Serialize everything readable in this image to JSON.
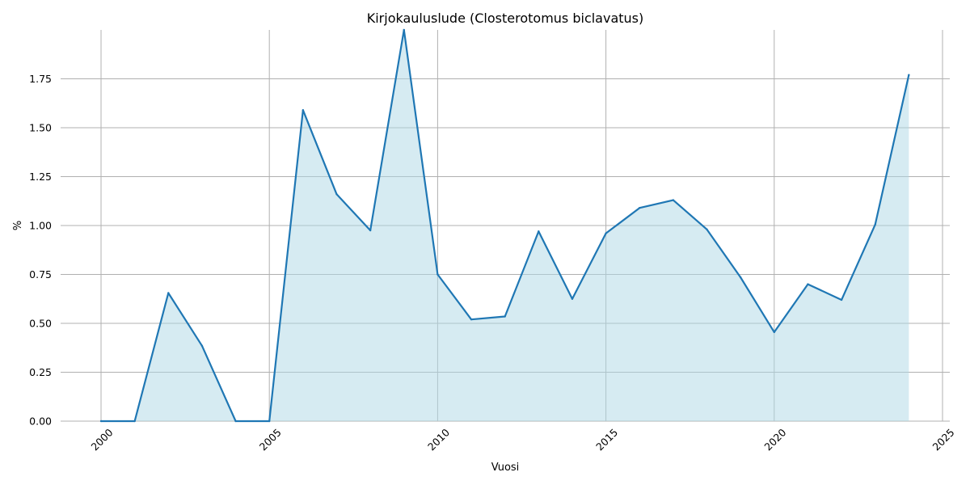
{
  "chart_data": {
    "type": "area",
    "title": "Kirjokauluslude (Closterotomus biclavatus)",
    "xlabel": "Vuosi",
    "ylabel": "%",
    "x": [
      2000,
      2001,
      2002,
      2003,
      2004,
      2005,
      2006,
      2007,
      2008,
      2009,
      2010,
      2011,
      2012,
      2013,
      2014,
      2015,
      2016,
      2017,
      2018,
      2019,
      2020,
      2021,
      2022,
      2023,
      2024
    ],
    "y": [
      0.0,
      0.0,
      0.655,
      0.385,
      0.0,
      0.0,
      1.59,
      1.16,
      0.975,
      2.0,
      0.75,
      0.52,
      0.535,
      0.97,
      0.625,
      0.96,
      1.09,
      1.13,
      0.98,
      0.735,
      0.455,
      0.7,
      0.62,
      1.005,
      1.77
    ],
    "xlim": [
      2000,
      2025
    ],
    "ylim": [
      0,
      2.0
    ],
    "x_ticks": [
      "2000",
      "2005",
      "2010",
      "2015",
      "2020",
      "2025"
    ],
    "y_ticks": [
      "0.00",
      "0.25",
      "0.50",
      "0.75",
      "1.00",
      "1.25",
      "1.50",
      "1.75"
    ],
    "grid": true,
    "line_color": "#1f77b4",
    "fill_color": "#add8e6"
  }
}
